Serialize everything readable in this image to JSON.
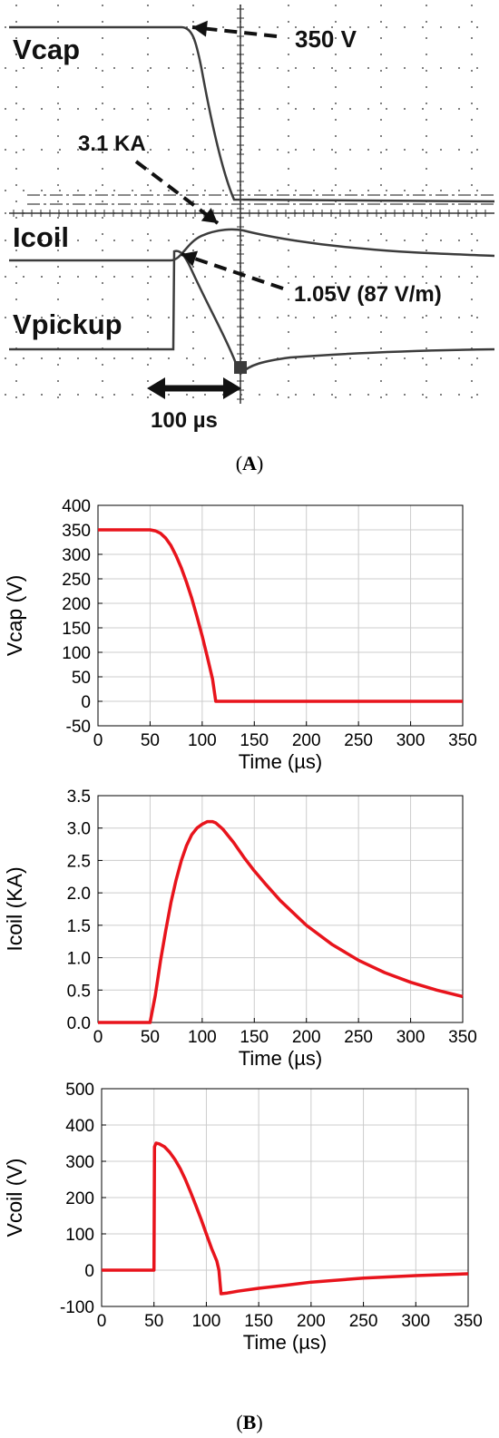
{
  "panel_a": {
    "label_open": "(",
    "label_letter": "A",
    "label_close": ")",
    "trace_labels": [
      "Vcap",
      "Icoil",
      "Vpickup"
    ],
    "annotations": [
      "350 V",
      "3.1 KA",
      "1.05V (87 V/m)"
    ],
    "scale_bar": "100 µs"
  },
  "panel_b": {
    "label_open": "(",
    "label_letter": "B",
    "label_close": ")"
  },
  "colors": {
    "series": "#e8141c",
    "scope_trace": "#3c3c3c",
    "grid": "#cccccc"
  },
  "chart_data": [
    {
      "type": "line",
      "title": "",
      "xlabel": "Time (µs)",
      "ylabel": "Vcap (V)",
      "xlim": [
        0,
        350
      ],
      "ylim": [
        -50,
        400
      ],
      "xticks": [
        0,
        50,
        100,
        150,
        200,
        250,
        300,
        350
      ],
      "yticks": [
        -50,
        0,
        50,
        100,
        150,
        200,
        250,
        300,
        350,
        400
      ],
      "grid": true,
      "series": [
        {
          "x": [
            0,
            50,
            55,
            60,
            65,
            70,
            75,
            80,
            85,
            90,
            95,
            100,
            105,
            110,
            113,
            115,
            150,
            200,
            250,
            300,
            350
          ],
          "y": [
            350,
            350,
            348,
            343,
            333,
            318,
            297,
            272,
            243,
            210,
            173,
            133,
            90,
            45,
            0,
            0,
            0,
            0,
            0,
            0,
            0
          ]
        }
      ]
    },
    {
      "type": "line",
      "title": "",
      "xlabel": "Time (µs)",
      "ylabel": "Icoil (KA)",
      "xlim": [
        0,
        350
      ],
      "ylim": [
        0,
        3.5
      ],
      "xticks": [
        0,
        50,
        100,
        150,
        200,
        250,
        300,
        350
      ],
      "yticks": [
        0.0,
        0.5,
        1.0,
        1.5,
        2.0,
        2.5,
        3.0,
        3.5
      ],
      "ytick_labels": [
        "0.0",
        "0.5",
        "1.0",
        "1.5",
        "2.0",
        "2.5",
        "3.0",
        "3.5"
      ],
      "grid": true,
      "series": [
        {
          "x": [
            0,
            50,
            55,
            60,
            65,
            70,
            75,
            80,
            85,
            90,
            95,
            100,
            105,
            110,
            113,
            120,
            130,
            140,
            150,
            160,
            175,
            200,
            225,
            250,
            275,
            300,
            325,
            350
          ],
          "y": [
            0,
            0,
            0.42,
            0.95,
            1.42,
            1.85,
            2.2,
            2.5,
            2.73,
            2.9,
            3.0,
            3.06,
            3.1,
            3.1,
            3.08,
            2.98,
            2.78,
            2.55,
            2.34,
            2.15,
            1.88,
            1.5,
            1.2,
            0.96,
            0.77,
            0.62,
            0.5,
            0.4
          ]
        }
      ]
    },
    {
      "type": "line",
      "title": "",
      "xlabel": "Time (µs)",
      "ylabel": "Vcoil (V)",
      "xlim": [
        0,
        350
      ],
      "ylim": [
        -100,
        500
      ],
      "xticks": [
        0,
        50,
        100,
        150,
        200,
        250,
        300,
        350
      ],
      "yticks": [
        -100,
        0,
        100,
        200,
        300,
        400,
        500
      ],
      "grid": true,
      "series": [
        {
          "x": [
            0,
            50,
            50.5,
            52,
            55,
            60,
            65,
            70,
            75,
            80,
            85,
            90,
            95,
            100,
            105,
            110,
            112,
            114,
            120,
            130,
            150,
            175,
            200,
            250,
            300,
            350
          ],
          "y": [
            0,
            0,
            340,
            350,
            348,
            340,
            325,
            305,
            280,
            250,
            215,
            178,
            140,
            100,
            60,
            25,
            0,
            -65,
            -63,
            -58,
            -50,
            -42,
            -33,
            -22,
            -15,
            -10
          ]
        }
      ]
    }
  ]
}
